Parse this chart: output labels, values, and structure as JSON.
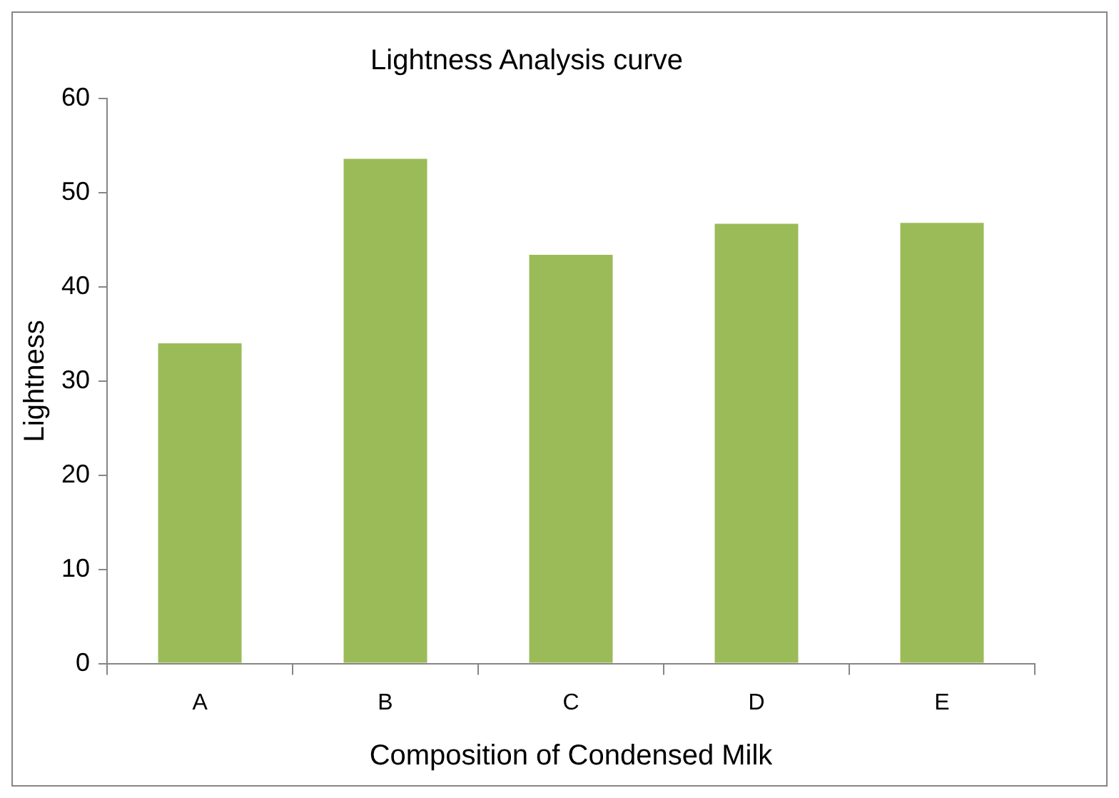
{
  "chart_data": {
    "type": "bar",
    "title": "Lightness Analysis curve",
    "xlabel": "Composition of Condensed Milk",
    "ylabel": "Lightness",
    "categories": [
      "A",
      "B",
      "C",
      "D",
      "E"
    ],
    "values": [
      34,
      53.6,
      43.4,
      46.7,
      46.8
    ],
    "color": "#9bbb59",
    "ylim": [
      0,
      60
    ],
    "yticks": [
      0,
      10,
      20,
      30,
      40,
      50,
      60
    ],
    "grid": false,
    "legend": false
  }
}
